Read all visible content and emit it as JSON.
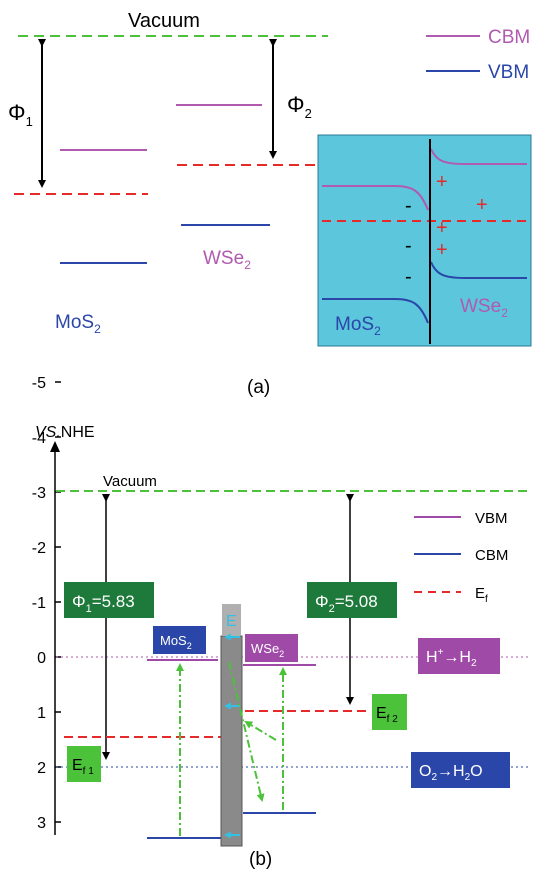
{
  "panel_a": {
    "caption": "(a)",
    "vacuum": "Vacuum",
    "phi1": {
      "main": "Φ",
      "sub": "1"
    },
    "phi2": {
      "main": "Φ",
      "sub": "2"
    },
    "legend": {
      "cbm": "CBM",
      "vbm": "VBM"
    },
    "mos2": {
      "main": "MoS",
      "sub": "2"
    },
    "wse2": {
      "main": "WSe",
      "sub": "2"
    },
    "inset": {
      "minus": "-",
      "plus": "+",
      "mos2": {
        "main": "MoS",
        "sub": "2"
      },
      "wse2": {
        "main": "WSe",
        "sub": "2"
      }
    },
    "colors": {
      "cbm": "#b05ab0",
      "vbm": "#2a46a8",
      "vacuum": "#4cc23a",
      "fermi": "#e62a2a",
      "inset_bg": "#5cc6dc"
    }
  },
  "panel_b": {
    "caption": "(b)",
    "axis_title": {
      "italic": "VS.",
      "rest": "NHE"
    },
    "ticks": [
      "-5",
      "-4",
      "-3",
      "-2",
      "-1",
      "0",
      "1",
      "2",
      "3"
    ],
    "vacuum": "Vacuum",
    "phi1": {
      "main": "Φ",
      "sub": "1",
      "rest": "=5.83"
    },
    "phi2": {
      "main": "Φ",
      "sub": "2",
      "rest": "=5.08"
    },
    "legend": {
      "vbm": "VBM",
      "cbm": "CBM",
      "ef": {
        "main": "E",
        "sub": "f"
      }
    },
    "ef1": {
      "main": "E",
      "sub": "f 1"
    },
    "ef2": {
      "main": "E",
      "sub": "f 2"
    },
    "e_field": "E",
    "mos2": {
      "main": "MoS",
      "sub": "2"
    },
    "wse2": {
      "main": "WSe",
      "sub": "2"
    },
    "h_reaction": {
      "a": "H",
      "sup": "+",
      "b": "→H",
      "sub": "2"
    },
    "o_reaction": {
      "a": "O",
      "sub": "2",
      "b": "→H",
      "sub2": "2",
      "c": "O"
    },
    "colors": {
      "dark_green": "#1e7a3a",
      "light_green": "#4cc23a",
      "purple": "#a04aa8",
      "blue": "#2a46a8",
      "grey": "#8a8a8a",
      "cyan": "#35bfe0"
    }
  }
}
